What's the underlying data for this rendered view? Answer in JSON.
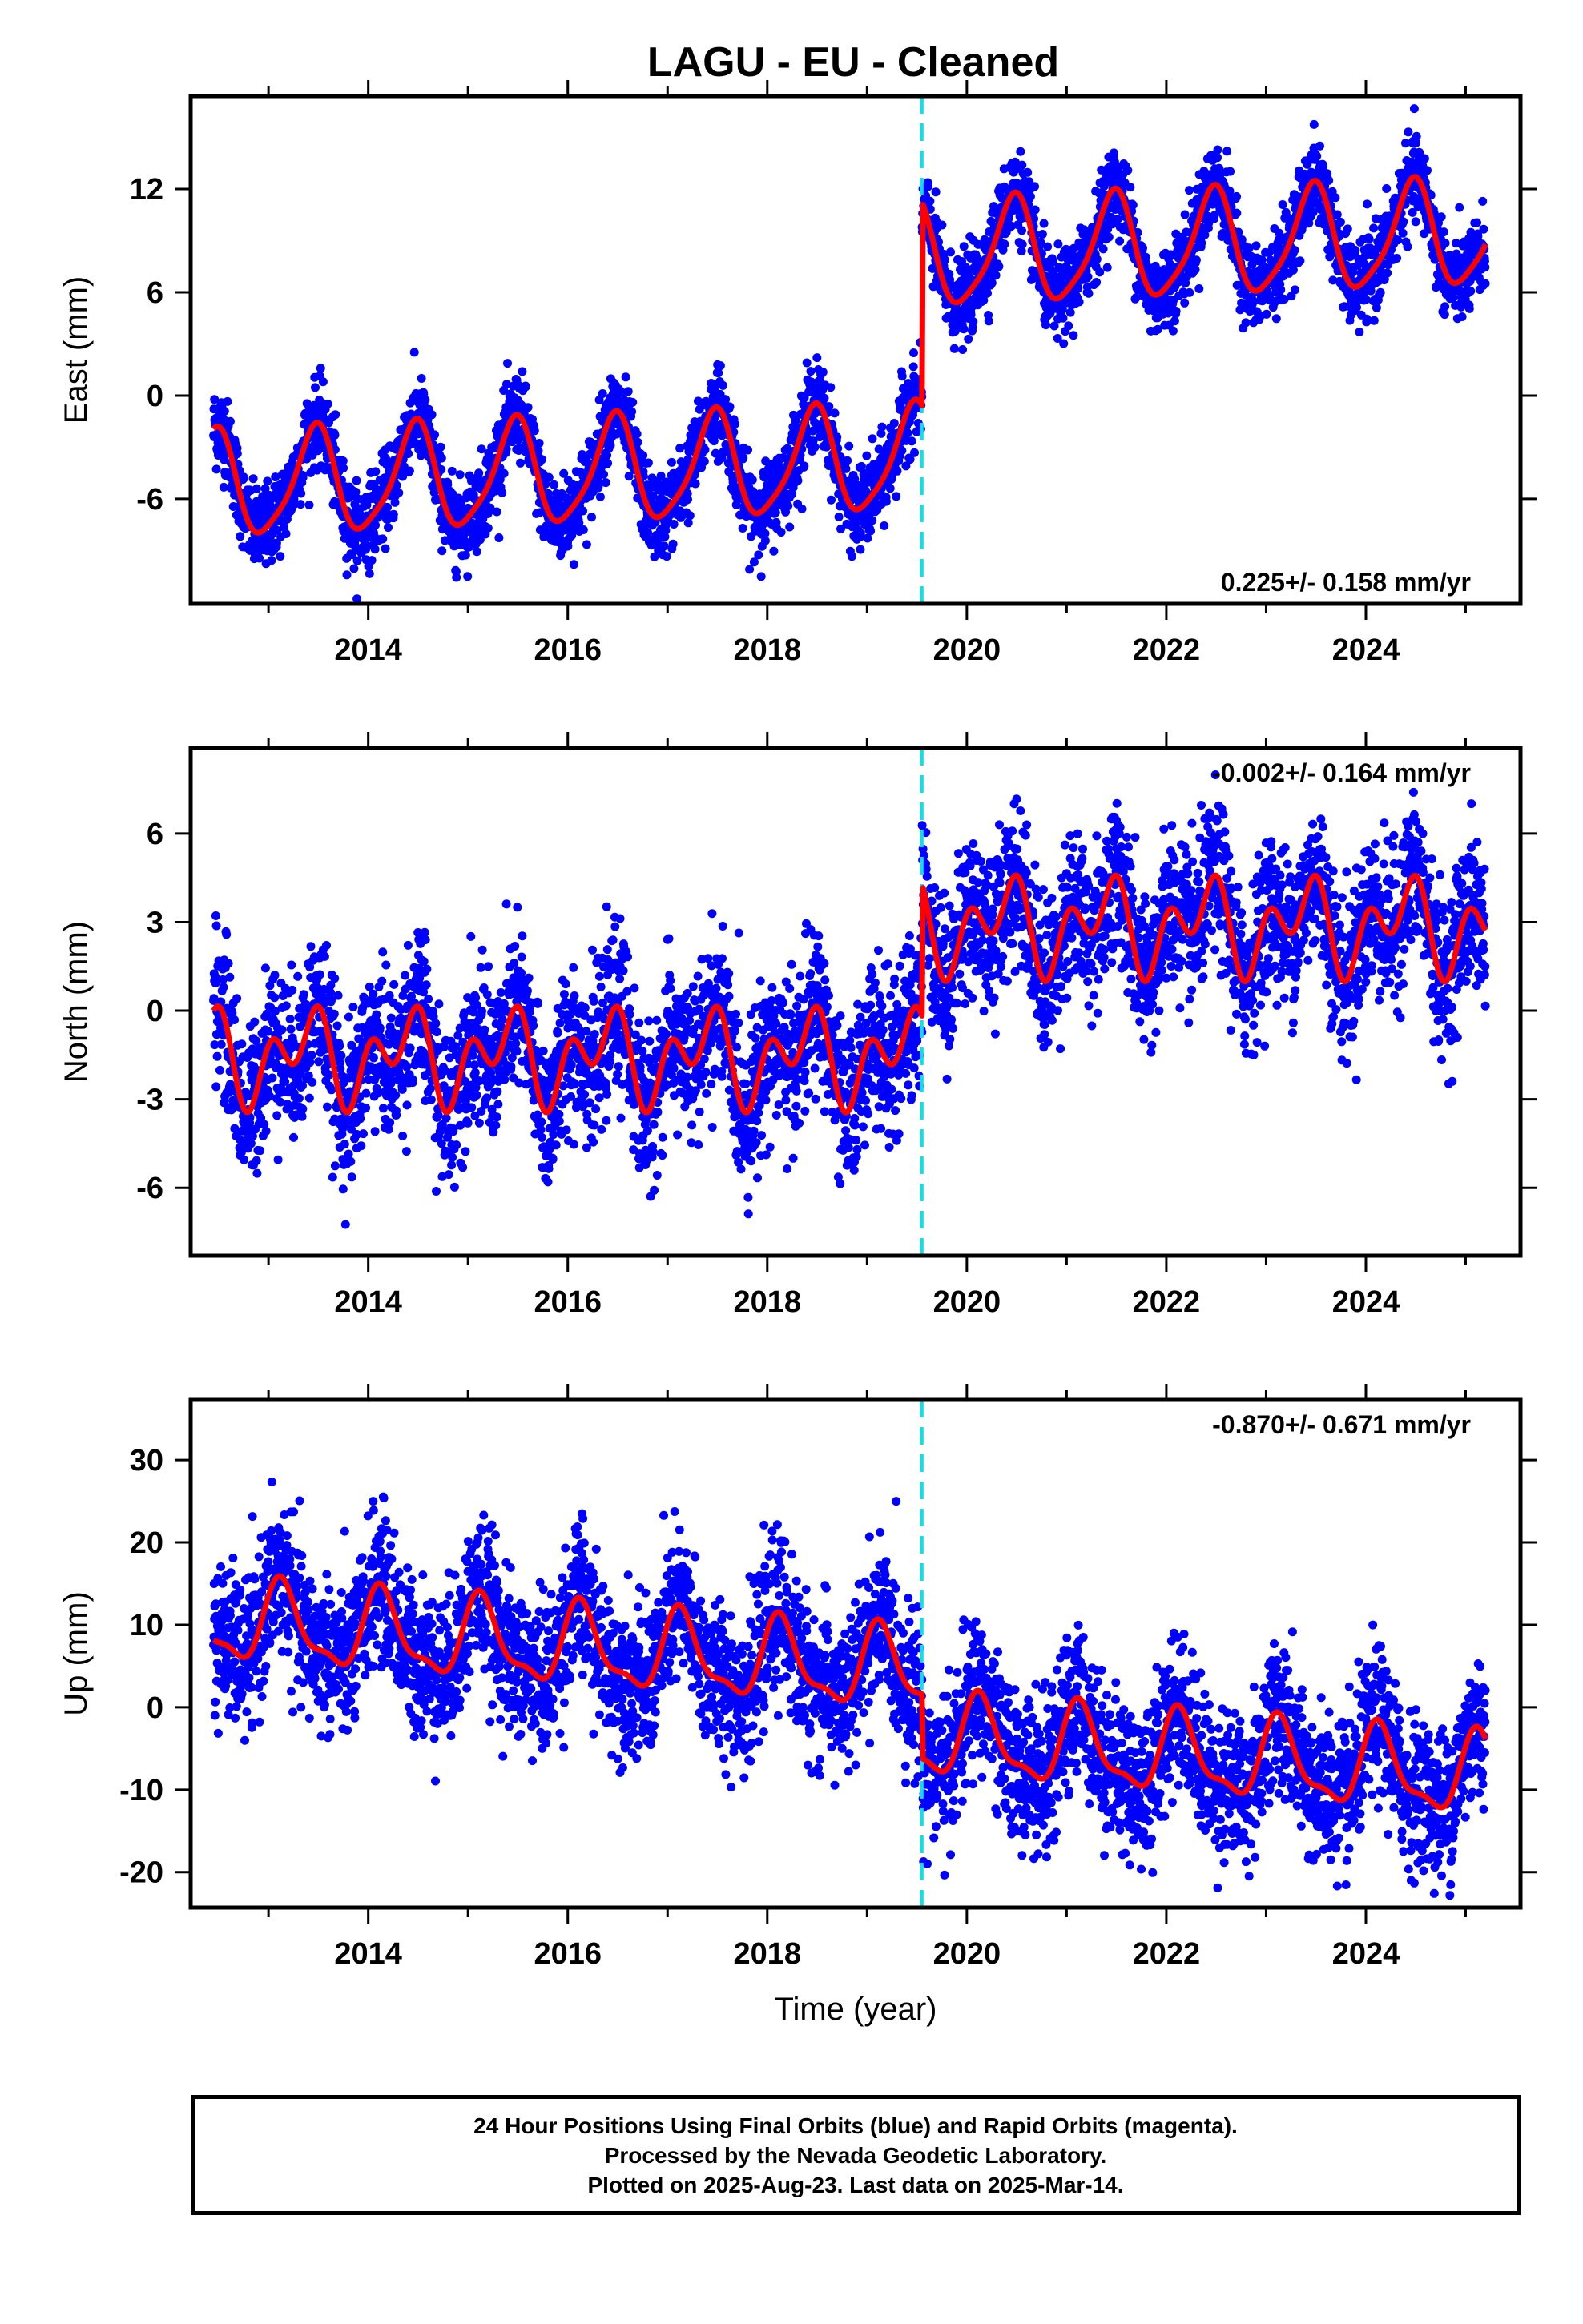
{
  "title": "LAGU  - EU - Cleaned",
  "colors": {
    "points": "#0000ff",
    "model": "#ff0000",
    "offset_line": "#00e5ee",
    "frame": "#000000"
  },
  "caption": {
    "line1": "24 Hour Positions Using Final Orbits (blue) and Rapid Orbits (magenta).",
    "line2": "Processed by the Nevada Geodetic Laboratory.",
    "line3": "Plotted on 2025-Aug-23. Last data on 2025-Mar-14."
  },
  "chart_data": [
    {
      "type": "scatter",
      "component": "east",
      "ylabel": "East (mm)",
      "xlabel": "",
      "xlim": [
        2012.22,
        2025.55
      ],
      "ylim": [
        -12.1,
        17.4
      ],
      "xticks": [
        2014,
        2016,
        2018,
        2020,
        2022,
        2024
      ],
      "yticks": [
        -6,
        0,
        6,
        12
      ],
      "offset_epoch": 2019.55,
      "rate_label": "0.225+/- 0.158 mm/yr",
      "rate_position": "bottom-right",
      "series": [
        {
          "name": "daily positions",
          "style": "dots",
          "start": 2012.45,
          "end": 2025.2,
          "model": {
            "pre_offset": -3.7,
            "post_offset": 8.1,
            "trend": 0.225,
            "annual": 3.0,
            "annual_phase": 2.9,
            "semiannual": 0.6,
            "semiannual_phase": 0.3,
            "scatter": 1.2
          }
        },
        {
          "name": "model",
          "style": "line",
          "model": {
            "pre_offset": -3.7,
            "post_offset": 8.1,
            "trend": 0.225,
            "annual": 3.0,
            "annual_phase": 2.9,
            "semiannual": 0.6,
            "semiannual_phase": 0.3
          }
        }
      ]
    },
    {
      "type": "scatter",
      "component": "north",
      "ylabel": "North (mm)",
      "xlabel": "",
      "xlim": [
        2012.22,
        2025.55
      ],
      "ylim": [
        -8.3,
        8.9
      ],
      "xticks": [
        2014,
        2016,
        2018,
        2020,
        2022,
        2024
      ],
      "yticks": [
        -6,
        -3,
        0,
        3,
        6
      ],
      "offset_epoch": 2019.55,
      "rate_label": "-0.002+/- 0.164 mm/yr",
      "rate_position": "top-right",
      "series": [
        {
          "name": "daily positions",
          "style": "dots",
          "start": 2012.45,
          "end": 2025.2,
          "model": {
            "pre_offset": -1.55,
            "post_offset": 2.9,
            "trend": -0.002,
            "annual": 1.0,
            "annual_phase": 2.3,
            "semiannual": 1.05,
            "semiannual_phase": 0.25,
            "scatter": 1.3
          }
        },
        {
          "name": "model",
          "style": "line",
          "model": {
            "pre_offset": -1.55,
            "post_offset": 2.9,
            "trend": -0.002,
            "annual": 1.0,
            "annual_phase": 2.3,
            "semiannual": 1.05,
            "semiannual_phase": 0.25
          }
        }
      ]
    },
    {
      "type": "scatter",
      "component": "up",
      "ylabel": "Up (mm)",
      "xlabel": "Time (year)",
      "xlim": [
        2012.22,
        2025.55
      ],
      "ylim": [
        -24.3,
        37.3
      ],
      "xticks": [
        2014,
        2016,
        2018,
        2020,
        2022,
        2024
      ],
      "yticks": [
        -20,
        -10,
        0,
        10,
        20,
        30
      ],
      "offset_epoch": 2019.55,
      "rate_label": "-0.870+/- 0.671 mm/yr",
      "rate_position": "top-right",
      "series": [
        {
          "name": "daily positions",
          "style": "dots",
          "start": 2012.45,
          "end": 2025.2,
          "model": {
            "pre_offset": 4.2,
            "post_offset": -3.6,
            "trend": -0.87,
            "annual": 4.6,
            "annual_phase": 0.85,
            "semiannual": 1.6,
            "semiannual_phase": 1.2,
            "scatter": 4.5
          }
        },
        {
          "name": "model",
          "style": "line",
          "model": {
            "pre_offset": 4.2,
            "post_offset": -3.6,
            "trend": -0.87,
            "annual": 4.6,
            "annual_phase": 0.85,
            "semiannual": 1.6,
            "semiannual_phase": 1.2
          }
        }
      ]
    }
  ]
}
